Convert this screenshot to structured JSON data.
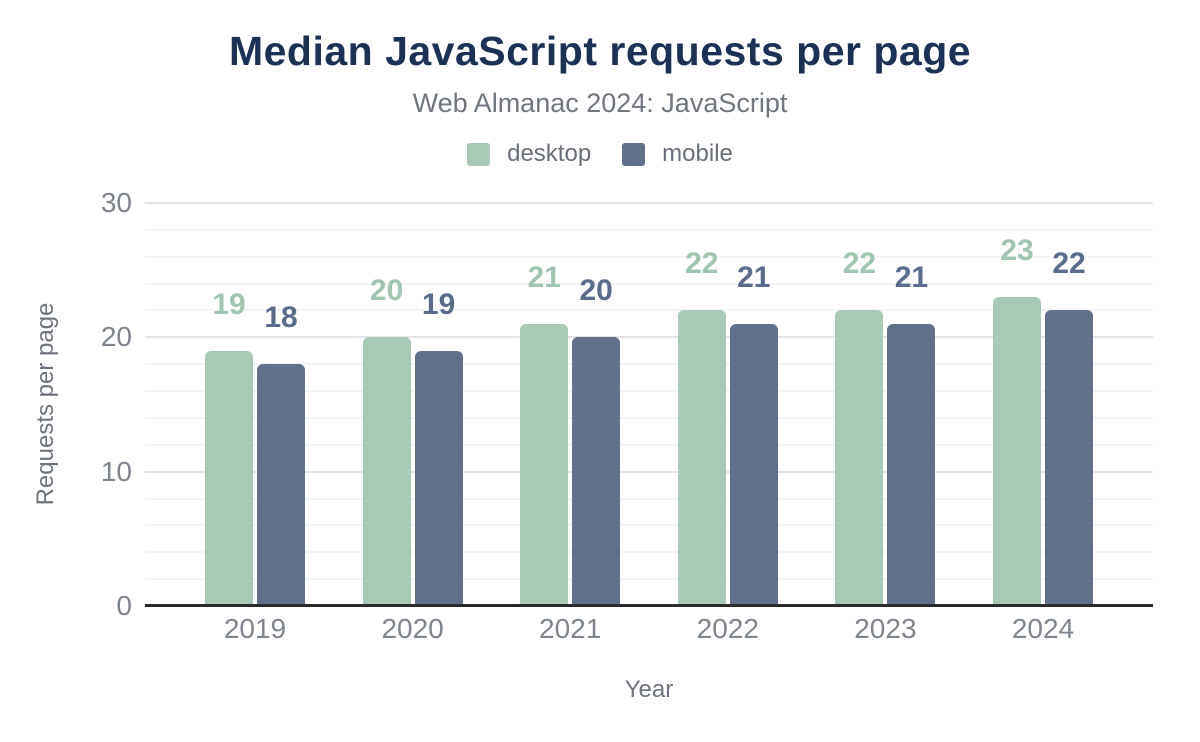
{
  "chart_data": {
    "type": "bar",
    "title": "Median JavaScript requests per page",
    "subtitle": "Web Almanac 2024: JavaScript",
    "xlabel": "Year",
    "ylabel": "Requests per page",
    "categories": [
      "2019",
      "2020",
      "2021",
      "2022",
      "2023",
      "2024"
    ],
    "series": [
      {
        "name": "desktop",
        "color": "#a8c9b5",
        "label_color": "#a0c5b1",
        "values": [
          19,
          20,
          21,
          22,
          22,
          23
        ]
      },
      {
        "name": "mobile",
        "color": "#61708b",
        "label_color": "#5a6c8b",
        "values": [
          18,
          19,
          20,
          21,
          21,
          22
        ]
      }
    ],
    "ylim": [
      0,
      30
    ],
    "yticks": [
      0,
      10,
      20,
      30
    ],
    "grid_step": 2,
    "grid": "on",
    "legend_position": "top"
  },
  "colors": {
    "title": "#1c3156",
    "subtitle_text": "#70767e",
    "tick_text": "#7f858d",
    "axis_title_text": "#6e747d",
    "legend_text": "#696f78",
    "axis_line": "#2b2b2b",
    "gridline_minor": "#f3f4f6",
    "gridline_major": "#e2e4e7",
    "background": "#ffffff"
  }
}
